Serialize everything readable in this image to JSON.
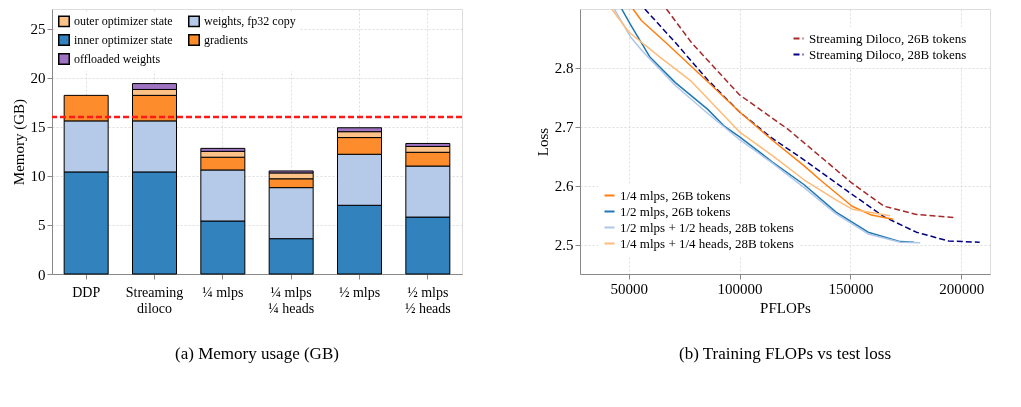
{
  "chart_data": [
    {
      "type": "bar",
      "stacked": true,
      "ylabel": "Memory (GB)",
      "ylim": [
        0,
        27
      ],
      "yticks": [
        0,
        5,
        10,
        15,
        20,
        25
      ],
      "grid": true,
      "legend": "top left",
      "categories": [
        "DDP",
        "Streaming\ndiloco",
        "¼ mlps",
        "¼ mlps\n¼ heads",
        "½ mlps",
        "½ mlps\n½ heads"
      ],
      "series": [
        {
          "name": "inner optimizer state",
          "color": "#3182bd",
          "values": [
            10.4,
            10.4,
            5.4,
            3.6,
            7.0,
            5.8
          ]
        },
        {
          "name": "weights, fp32 copy",
          "color": "#b5cae9",
          "values": [
            5.2,
            5.2,
            5.2,
            5.2,
            5.2,
            5.2
          ]
        },
        {
          "name": "gradients",
          "color": "#fd8d2c",
          "values": [
            2.6,
            2.6,
            1.3,
            0.9,
            1.7,
            1.4
          ]
        },
        {
          "name": "outer optimizer state",
          "color": "#fdc287",
          "values": [
            null,
            0.6,
            0.6,
            0.6,
            0.6,
            0.6
          ]
        },
        {
          "name": "offloaded weights",
          "color": "#9e73c2",
          "values": [
            null,
            0.6,
            0.3,
            0.2,
            0.4,
            0.3
          ]
        }
      ],
      "ref_lines": [
        {
          "axis": "y",
          "value": 16,
          "color": "#ff1a1a",
          "line_style": "dashed"
        }
      ],
      "annotations": [
        "(a) Memory usage (GB)"
      ]
    },
    {
      "type": "line",
      "xlabel": "PFLOPs",
      "ylabel": "Loss",
      "xlim": [
        28000,
        213000
      ],
      "ylim": [
        2.45,
        2.9
      ],
      "xticks": [
        50000,
        100000,
        150000,
        200000
      ],
      "yticks": [
        2.5,
        2.6,
        2.7,
        2.8
      ],
      "grid": true,
      "legend": [
        "top right",
        "bottom left"
      ],
      "marker": "none",
      "series": [
        {
          "name": "Streaming Diloco, 26B tokens",
          "color": "#a52a2a",
          "line_style": "dashed",
          "x": [
            67000,
            78275,
            100025,
            121775,
            150485,
            165275,
            179775,
            196885
          ],
          "values": [
            2.9,
            2.843,
            2.754,
            2.696,
            2.605,
            2.565,
            2.551,
            2.546
          ]
        },
        {
          "name": "Streaming Diloco, 28B tokens",
          "color": "#000080",
          "line_style": "dashed",
          "x": [
            57250,
            71025,
            85525,
            100025,
            114525,
            129025,
            150485,
            165275,
            179775,
            194275,
            208340
          ],
          "values": [
            2.9,
            2.843,
            2.78,
            2.725,
            2.681,
            2.644,
            2.586,
            2.547,
            2.521,
            2.506,
            2.504
          ]
        },
        {
          "name": "1/4 mlps, 26B tokens",
          "color": "#ff7f0e",
          "line_style": "solid",
          "x": [
            51885,
            55800,
            66675,
            85525,
            100025,
            114525,
            129025,
            136275,
            150775,
            159475,
            169335
          ],
          "values": [
            2.9,
            2.88,
            2.843,
            2.777,
            2.725,
            2.678,
            2.634,
            2.61,
            2.565,
            2.55,
            2.543
          ]
        },
        {
          "name": "1/2 mlps, 26B tokens",
          "color": "#1f77b4",
          "line_style": "solid",
          "x": [
            46810,
            50725,
            59425,
            71025,
            85525,
            92775,
            100025,
            114525,
            129025,
            143525,
            158025,
            172525,
            178760
          ],
          "values": [
            2.9,
            2.874,
            2.819,
            2.775,
            2.73,
            2.702,
            2.683,
            2.641,
            2.602,
            2.555,
            2.521,
            2.505,
            2.504
          ]
        },
        {
          "name": "1/2 mlps + 1/2 heads, 28B tokens",
          "color": "#aec7e8",
          "line_style": "solid",
          "x": [
            43475,
            50725,
            56525,
            71025,
            85525,
            100025,
            114525,
            129025,
            143525,
            158025,
            172525,
            181515
          ],
          "values": [
            2.9,
            2.853,
            2.827,
            2.77,
            2.723,
            2.678,
            2.639,
            2.597,
            2.552,
            2.518,
            2.504,
            2.503
          ]
        },
        {
          "name": "1/4 mlps + 1/4 heads, 28B tokens",
          "color": "#ffbb78",
          "line_style": "solid",
          "x": [
            42315,
            50000,
            63775,
            78275,
            100025,
            114525,
            129025,
            143525,
            150775,
            167885
          ],
          "values": [
            2.9,
            2.861,
            2.819,
            2.777,
            2.691,
            2.652,
            2.61,
            2.576,
            2.56,
            2.549
          ]
        }
      ],
      "annotations": [
        "(b) Training FLOPs vs test loss"
      ]
    }
  ]
}
